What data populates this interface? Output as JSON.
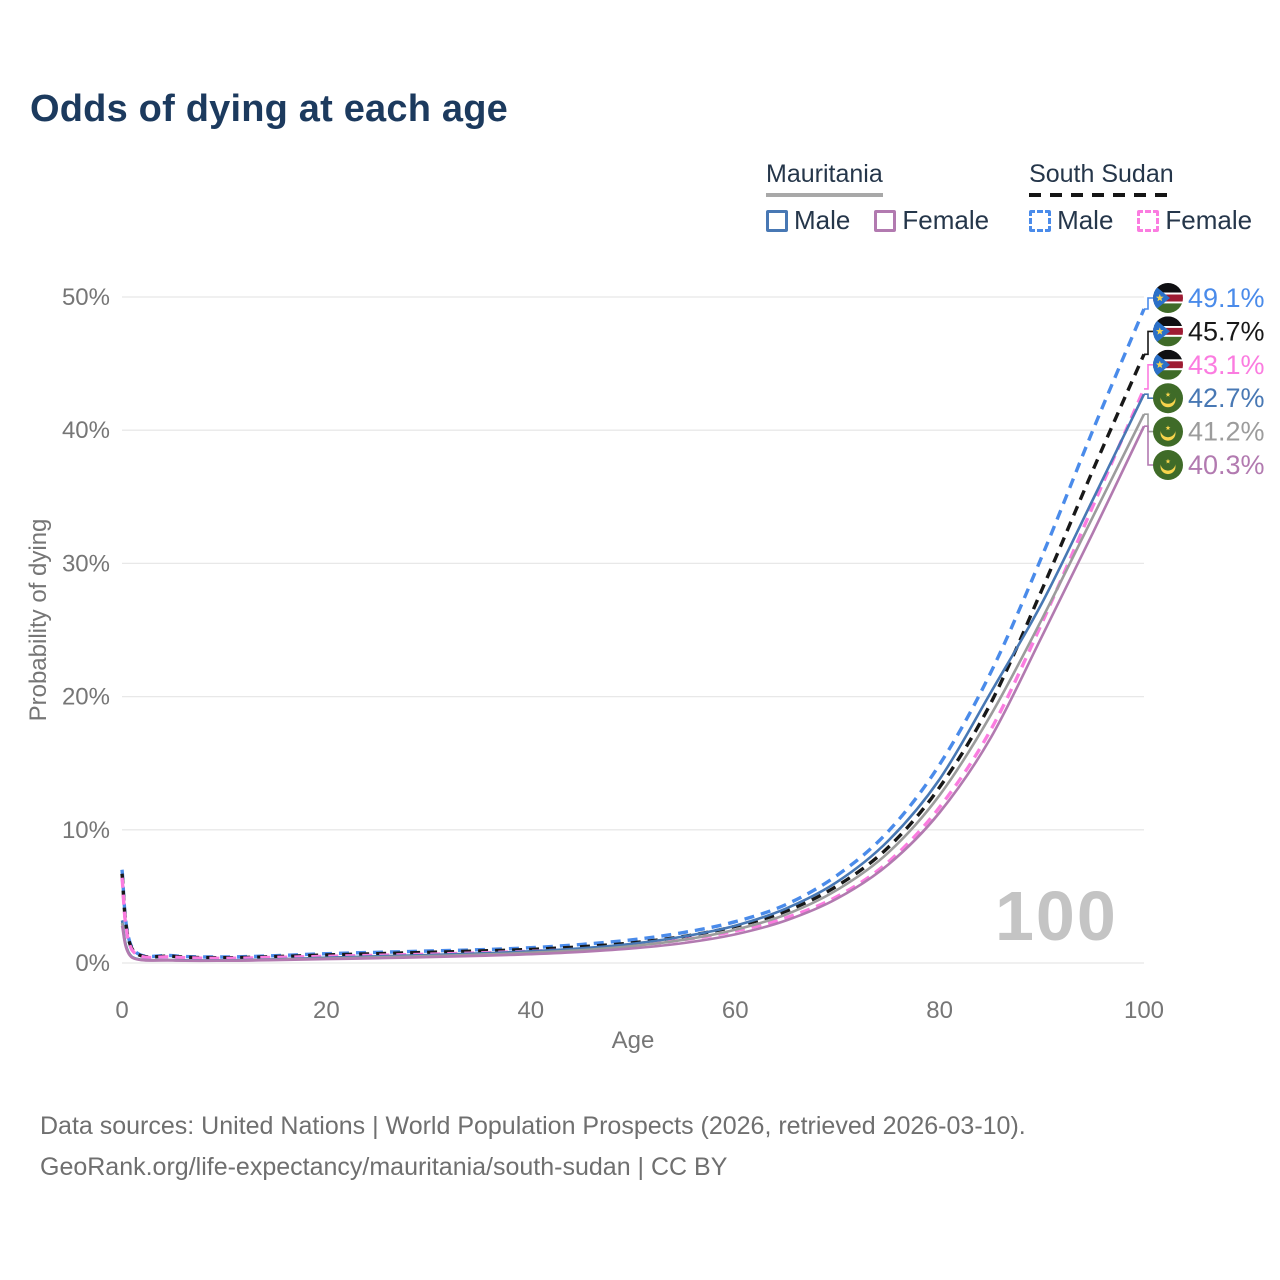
{
  "title": "Odds of dying at each age",
  "watermark": "100",
  "legend": {
    "groups": [
      {
        "country": "Mauritania",
        "line_style": "solid",
        "line_color": "#a8a8a8",
        "entries": [
          {
            "label": "Male",
            "color": "#4878b4",
            "dashed": false
          },
          {
            "label": "Female",
            "color": "#b27ab0",
            "dashed": false
          }
        ]
      },
      {
        "country": "South Sudan",
        "line_style": "dashed",
        "line_color": "#151515",
        "entries": [
          {
            "label": "Male",
            "color": "#4a8bea",
            "dashed": true
          },
          {
            "label": "Female",
            "color": "#fb7ce0",
            "dashed": true
          }
        ]
      }
    ]
  },
  "footer": {
    "line1": "Data sources: United Nations | World Population Prospects (2026, retrieved 2026-03-10).",
    "line2": "GeoRank.org/life-expectancy/mauritania/south-sudan | CC BY"
  },
  "chart_data": {
    "type": "line",
    "title": "Odds of dying at each age",
    "xlabel": "Age",
    "ylabel": "Probability of dying",
    "xlim": [
      0,
      100
    ],
    "ylim_pct": [
      0,
      50
    ],
    "grid": "horizontal",
    "x_ticks": [
      0,
      20,
      40,
      60,
      80,
      100
    ],
    "x_tick_labels": [
      "0",
      "20",
      "40",
      "60",
      "80",
      "100"
    ],
    "y_ticks_pct": [
      0,
      10,
      20,
      30,
      40,
      50
    ],
    "y_tick_labels": [
      "0%",
      "10%",
      "20%",
      "30%",
      "40%",
      "50%"
    ],
    "ages": [
      0,
      1,
      5,
      10,
      15,
      20,
      25,
      30,
      35,
      40,
      45,
      50,
      55,
      60,
      65,
      70,
      75,
      80,
      85,
      90,
      95,
      100
    ],
    "series": [
      {
        "id": "south-sudan-male",
        "country": "South Sudan",
        "sex": "Male",
        "flag": "south-sudan",
        "color": "#4a8bea",
        "dashed": true,
        "values_pct": [
          7.0,
          1.15,
          0.55,
          0.45,
          0.55,
          0.7,
          0.8,
          0.9,
          1.0,
          1.15,
          1.4,
          1.75,
          2.3,
          3.1,
          4.4,
          6.6,
          9.9,
          14.9,
          21.8,
          30.5,
          40.0,
          49.1
        ],
        "end_label": "49.1%"
      },
      {
        "id": "south-sudan-both",
        "country": "South Sudan",
        "sex": "Both",
        "flag": "south-sudan",
        "color": "#181818",
        "dashed": true,
        "values_pct": [
          6.7,
          1.05,
          0.5,
          0.4,
          0.48,
          0.6,
          0.7,
          0.8,
          0.9,
          1.02,
          1.22,
          1.52,
          2.0,
          2.75,
          3.9,
          5.8,
          8.7,
          13.2,
          19.5,
          28.0,
          37.0,
          45.7
        ],
        "end_label": "45.7%"
      },
      {
        "id": "south-sudan-female",
        "country": "South Sudan",
        "sex": "Female",
        "flag": "south-sudan",
        "color": "#fb7ce0",
        "dashed": true,
        "values_pct": [
          6.4,
          0.95,
          0.45,
          0.35,
          0.42,
          0.5,
          0.58,
          0.66,
          0.76,
          0.88,
          1.05,
          1.32,
          1.75,
          2.4,
          3.4,
          5.0,
          7.6,
          11.7,
          17.5,
          25.5,
          34.3,
          43.1
        ],
        "end_label": "43.1%"
      },
      {
        "id": "mauritania-male",
        "country": "Mauritania",
        "sex": "Male",
        "flag": "mauritania",
        "color": "#4878b4",
        "dashed": false,
        "values_pct": [
          3.2,
          0.45,
          0.22,
          0.2,
          0.28,
          0.4,
          0.5,
          0.6,
          0.72,
          0.88,
          1.1,
          1.45,
          2.0,
          2.8,
          4.1,
          6.1,
          9.2,
          13.8,
          20.3,
          27.0,
          34.8,
          42.7
        ],
        "end_label": "42.7%"
      },
      {
        "id": "mauritania-both",
        "country": "Mauritania",
        "sex": "Both",
        "flag": "mauritania",
        "color": "#9c9c9c",
        "dashed": false,
        "values_pct": [
          3.0,
          0.42,
          0.2,
          0.18,
          0.25,
          0.34,
          0.43,
          0.52,
          0.63,
          0.77,
          0.97,
          1.28,
          1.75,
          2.5,
          3.65,
          5.5,
          8.3,
          12.6,
          18.6,
          25.8,
          33.5,
          41.2
        ],
        "end_label": "41.2%"
      },
      {
        "id": "mauritania-female",
        "country": "Mauritania",
        "sex": "Female",
        "flag": "mauritania",
        "color": "#b27ab0",
        "dashed": false,
        "values_pct": [
          2.8,
          0.4,
          0.19,
          0.17,
          0.22,
          0.29,
          0.36,
          0.44,
          0.54,
          0.66,
          0.84,
          1.1,
          1.5,
          2.15,
          3.2,
          4.85,
          7.4,
          11.3,
          16.9,
          24.5,
          32.3,
          40.3
        ],
        "end_label": "40.3%"
      }
    ]
  }
}
